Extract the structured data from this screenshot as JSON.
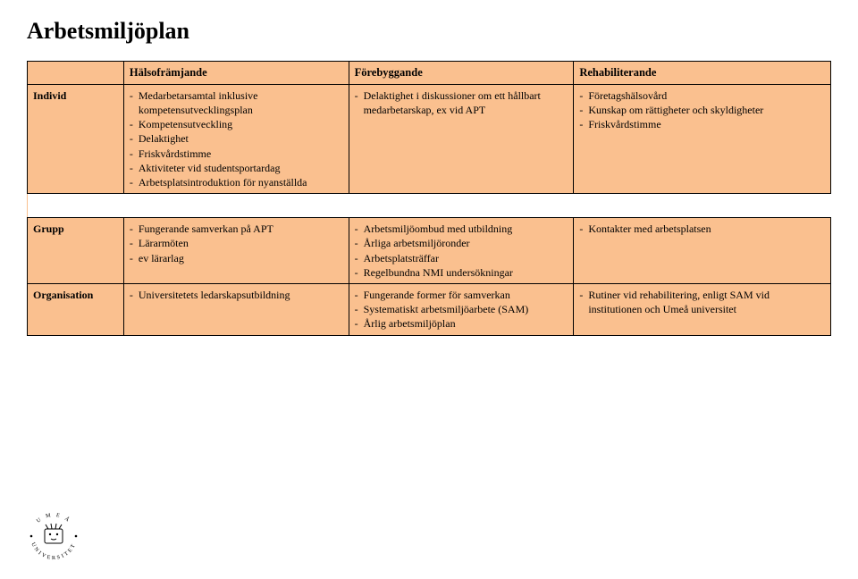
{
  "title": "Arbetsmiljöplan",
  "columns": [
    "",
    "Hälsofrämjande",
    "Förebyggande",
    "Rehabiliterande"
  ],
  "rows": {
    "individ": {
      "label": "Individ",
      "halsoframjande": [
        "Medarbetarsamtal inklusive kompetensutvecklingsplan",
        "Kompetensutveckling",
        "Delaktighet",
        "Friskvårdstimme",
        "Aktiviteter vid studentsportardag",
        "Arbetsplatsintroduktion för nyanställda"
      ],
      "forebyggande": [
        "Delaktighet i diskussioner om ett hållbart medarbetarskap, ex vid APT"
      ],
      "rehabiliterande": [
        "Företagshälsovård",
        "Kunskap om rättigheter och skyldigheter",
        "Friskvårdstimme"
      ]
    },
    "grupp": {
      "label": "Grupp",
      "halsoframjande": [
        "Fungerande samverkan på APT",
        "Lärarmöten",
        "ev lärarlag"
      ],
      "forebyggande": [
        "Arbetsmiljöombud med utbildning",
        "Årliga arbetsmiljöronder",
        "Arbetsplatsträffar",
        "Regelbundna NMI undersökningar"
      ],
      "rehabiliterande": [
        "Kontakter med arbetsplatsen"
      ]
    },
    "organisation": {
      "label": "Organisation",
      "halsoframjande": [
        "Universitetets ledarskapsutbildning"
      ],
      "forebyggande": [
        "Fungerande former för samverkan",
        "Systematiskt arbetsmiljöarbete (SAM)",
        "Årlig arbetsmiljöplan"
      ],
      "rehabiliterande": [
        "Rutiner vid rehabilitering, enligt SAM vid institutionen och Umeå universitet"
      ]
    }
  },
  "logo": {
    "text_top": "U M E Å",
    "text_bottom": "UNIVERSITET"
  },
  "colors": {
    "table_bg": "#fac08f",
    "border": "#000000",
    "page_bg": "#ffffff",
    "text": "#000000"
  }
}
